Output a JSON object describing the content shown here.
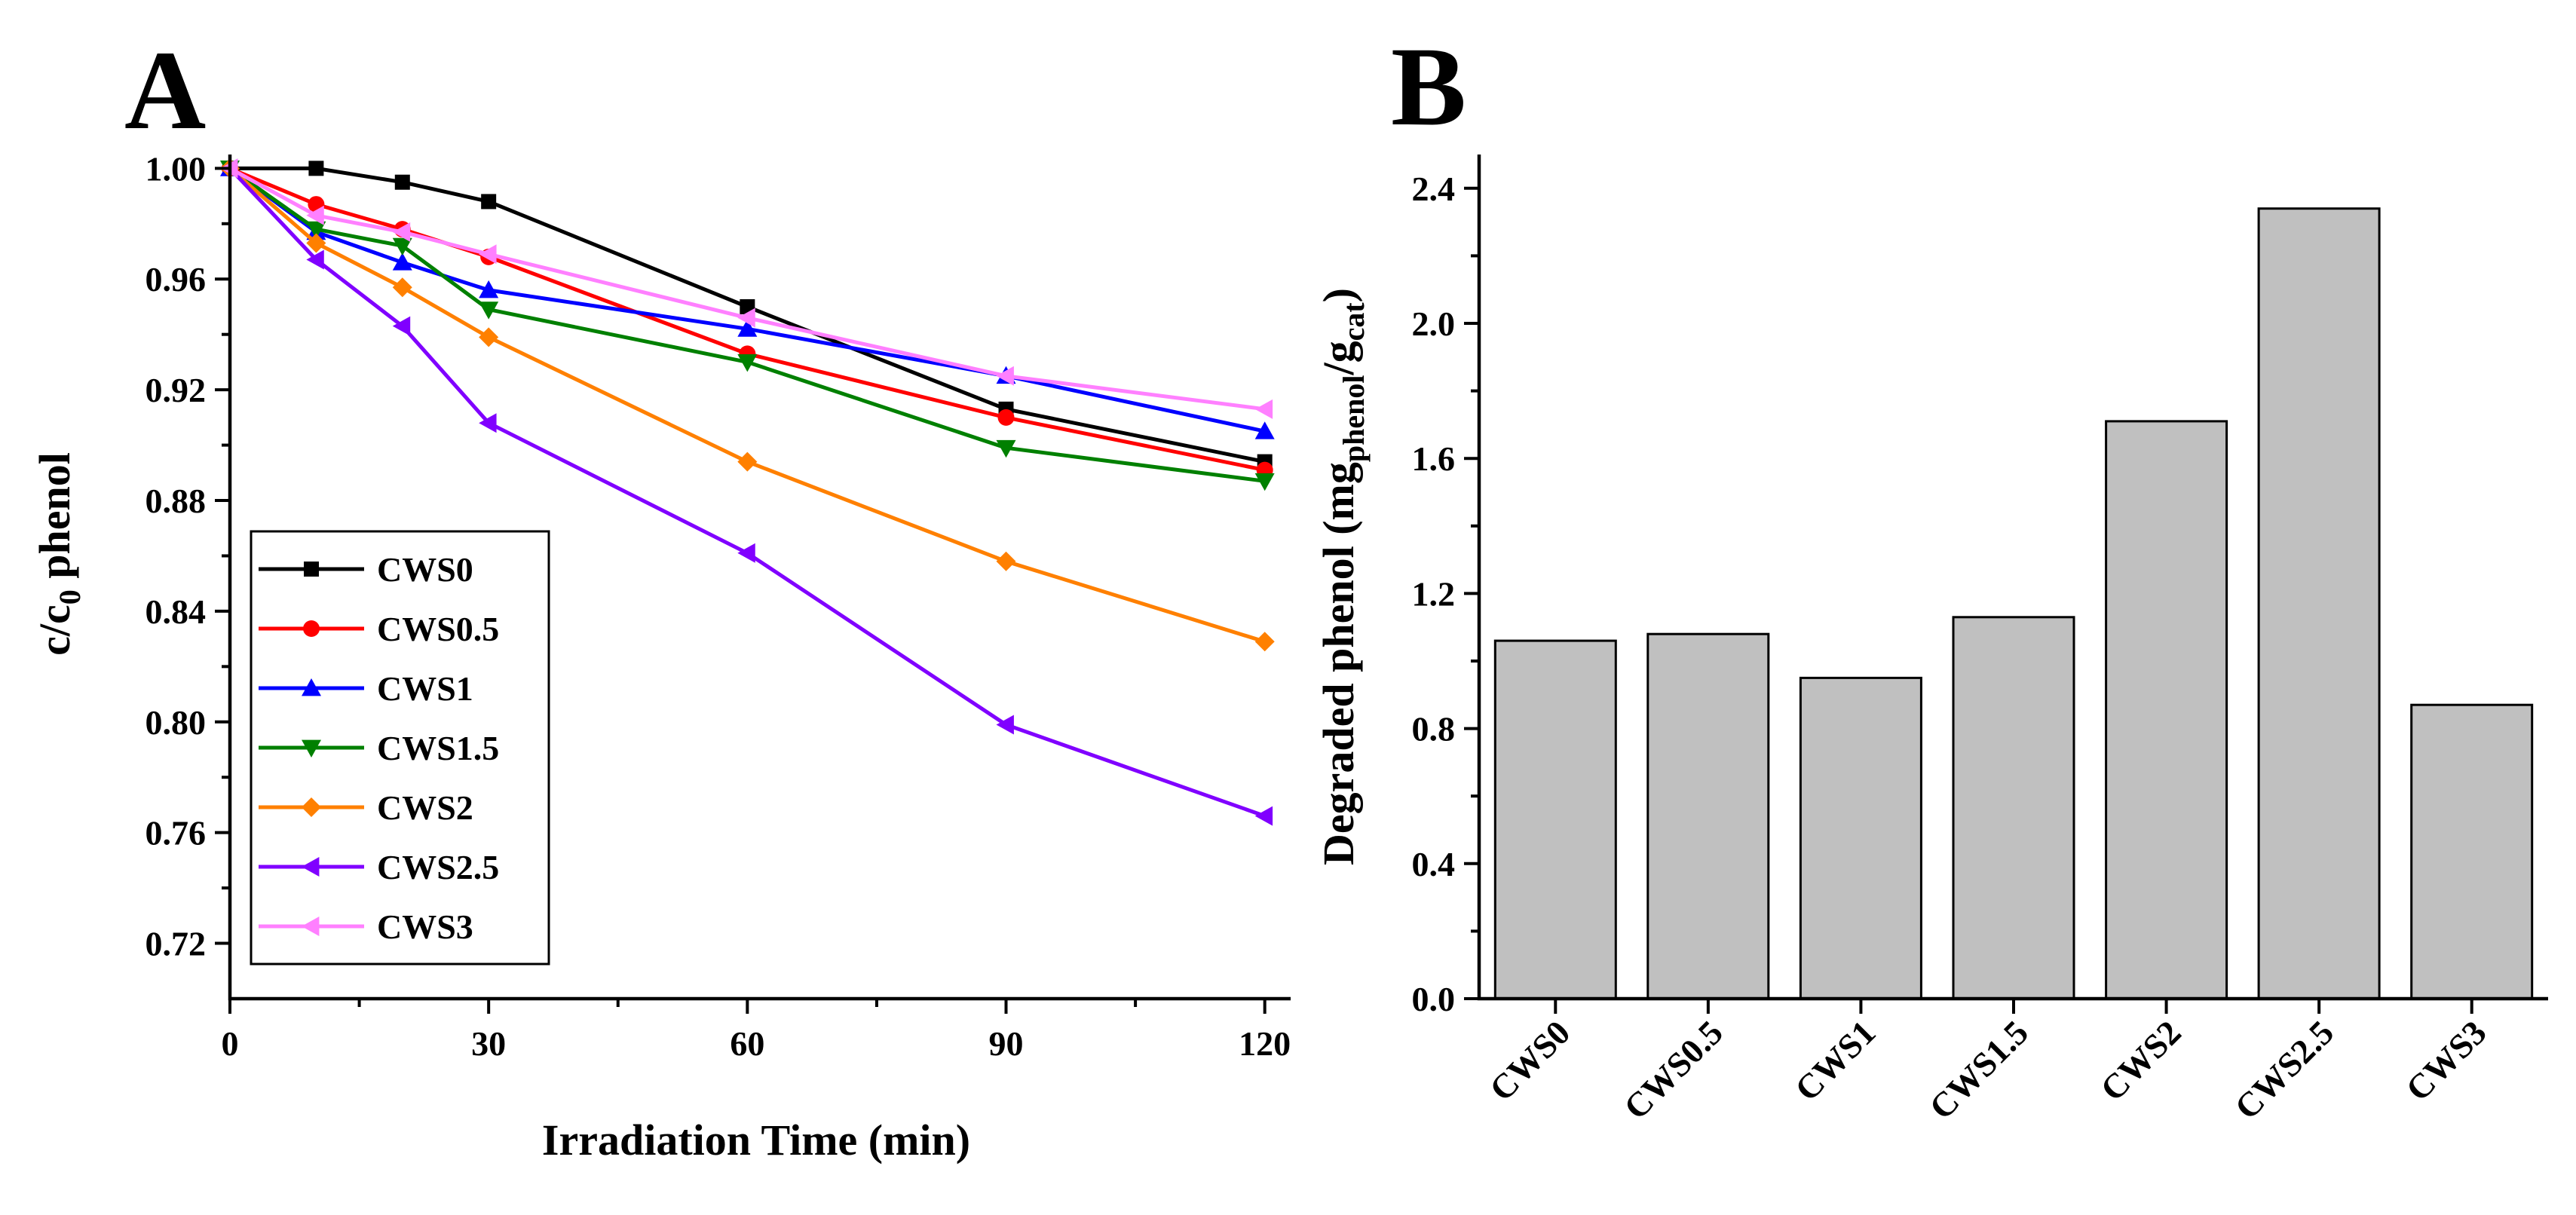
{
  "chart_data": [
    {
      "panel_label": "A",
      "type": "line",
      "title": "",
      "xlabel": "Irradiation Time (min)",
      "ylabel_parts": [
        "c/c",
        "0",
        " phenol"
      ],
      "xlim": [
        0,
        123
      ],
      "ylim": [
        0.7,
        1.005
      ],
      "xticks": [
        0,
        30,
        60,
        90,
        120
      ],
      "xtick_labels": [
        "0",
        "30",
        "60",
        "90",
        "120"
      ],
      "xminor": [
        15,
        45,
        75,
        105
      ],
      "yticks": [
        0.72,
        0.76,
        0.8,
        0.84,
        0.88,
        0.92,
        0.96,
        1.0
      ],
      "ytick_labels": [
        "0.72",
        "0.76",
        "0.80",
        "0.84",
        "0.88",
        "0.92",
        "0.96",
        "1.00"
      ],
      "yminor": [
        0.74,
        0.78,
        0.82,
        0.86,
        0.9,
        0.94,
        0.98
      ],
      "legend_position": "bottom-left",
      "x": [
        0,
        10,
        20,
        30,
        60,
        90,
        120
      ],
      "series": [
        {
          "name": "CWS0",
          "color": "#000000",
          "marker": "square",
          "values": [
            1.0,
            1.0,
            0.995,
            0.988,
            0.95,
            0.913,
            0.894
          ]
        },
        {
          "name": "CWS0.5",
          "color": "#ff0000",
          "marker": "circle",
          "values": [
            1.0,
            0.987,
            0.978,
            0.968,
            0.933,
            0.91,
            0.891
          ]
        },
        {
          "name": "CWS1",
          "color": "#0000ff",
          "marker": "triangle-up",
          "values": [
            1.0,
            0.977,
            0.966,
            0.956,
            0.942,
            0.925,
            0.905
          ]
        },
        {
          "name": "CWS1.5",
          "color": "#008000",
          "marker": "triangle-down",
          "values": [
            1.0,
            0.978,
            0.972,
            0.949,
            0.93,
            0.899,
            0.887
          ]
        },
        {
          "name": "CWS2",
          "color": "#ff8000",
          "marker": "diamond",
          "values": [
            1.0,
            0.973,
            0.957,
            0.939,
            0.894,
            0.858,
            0.829
          ]
        },
        {
          "name": "CWS2.5",
          "color": "#8000ff",
          "marker": "triangle-left",
          "values": [
            1.0,
            0.967,
            0.943,
            0.908,
            0.861,
            0.799,
            0.766
          ]
        },
        {
          "name": "CWS3",
          "color": "#ff80ff",
          "marker": "triangle-left",
          "values": [
            1.0,
            0.983,
            0.977,
            0.969,
            0.946,
            0.925,
            0.913
          ]
        }
      ]
    },
    {
      "panel_label": "B",
      "type": "bar",
      "title": "",
      "xlabel": "",
      "ylabel_parts": [
        "Degraded phenol (mg",
        "phenol",
        "/g",
        "cat",
        ")"
      ],
      "ylim": [
        0,
        2.5
      ],
      "yticks": [
        0.0,
        0.4,
        0.8,
        1.2,
        1.6,
        2.0,
        2.4
      ],
      "ytick_labels": [
        "0.0",
        "0.4",
        "0.8",
        "1.2",
        "1.6",
        "2.0",
        "2.4"
      ],
      "yminor": [
        0.2,
        0.6,
        1.0,
        1.4,
        1.8,
        2.2
      ],
      "bar_color": "#c0c0c0",
      "categories": [
        "CWS0",
        "CWS0.5",
        "CWS1",
        "CWS1.5",
        "CWS2",
        "CWS2.5",
        "CWS3"
      ],
      "values": [
        1.06,
        1.08,
        0.95,
        1.13,
        1.71,
        2.34,
        0.87
      ]
    }
  ]
}
